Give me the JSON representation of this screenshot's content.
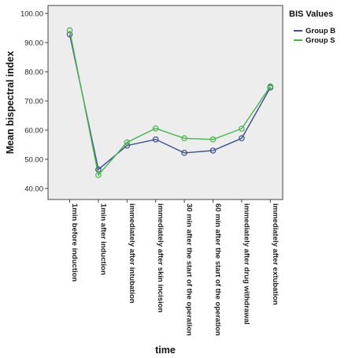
{
  "chart_data": {
    "type": "line",
    "title": "",
    "xlabel": "time",
    "ylabel": "Mean bispectral index",
    "ylim": [
      40,
      100
    ],
    "yticks": [
      "40.00",
      "50.00",
      "60.00",
      "70.00",
      "80.00",
      "90.00",
      "100.00"
    ],
    "categories": [
      "1min before induction",
      "1min after induction",
      "immediately after intubation",
      "immediately after skin incision",
      "30 min after the start of the operation",
      "60 min after the start of the operation",
      "immediately after drug withdrawal",
      "immediately after extubation"
    ],
    "legend_title": "BIS Values",
    "legend_position": "top-right",
    "grid": false,
    "series": [
      {
        "name": "Group B",
        "color": "#3a4f8f",
        "values": [
          92.8,
          46.5,
          54.7,
          56.8,
          52.2,
          53.0,
          57.2,
          74.6
        ]
      },
      {
        "name": "Group S",
        "color": "#44b84a",
        "values": [
          94.2,
          44.6,
          55.8,
          60.6,
          57.2,
          56.8,
          60.5,
          75.0
        ]
      }
    ]
  }
}
